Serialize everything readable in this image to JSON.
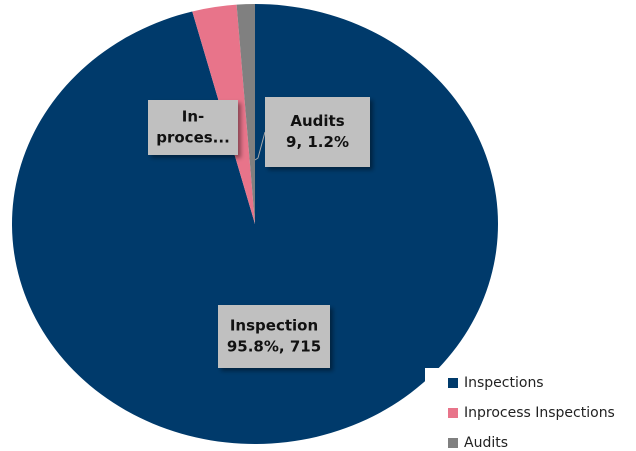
{
  "chart_data": {
    "type": "pie",
    "categories": [
      "Inspections",
      "Inprocess Inspections",
      "Audits"
    ],
    "values": [
      715,
      22,
      9
    ],
    "value_labels": [
      [
        "Inspection",
        "95.8%, 715"
      ],
      [
        "In-",
        "proces..."
      ],
      [
        "Audits",
        "9, 1.2%"
      ]
    ],
    "colors": [
      "#003a6b",
      "#e8748a",
      "#808080"
    ],
    "legend": "bottom-right"
  }
}
